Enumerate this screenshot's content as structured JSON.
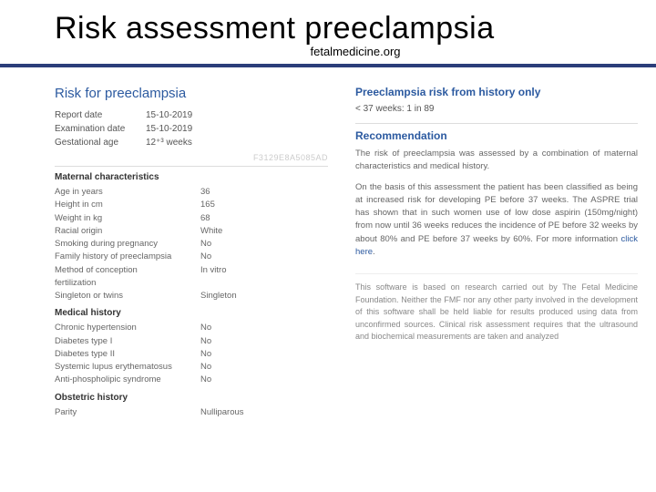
{
  "header": {
    "title": "Risk assessment preeclampsia",
    "subtitle": "fetalmedicine.org"
  },
  "left": {
    "title": "Risk for preeclampsia",
    "meta": [
      {
        "label": "Report date",
        "value": "15-10-2019"
      },
      {
        "label": "Examination date",
        "value": "15-10-2019"
      },
      {
        "label": "Gestational age",
        "value": "12⁺³ weeks"
      }
    ],
    "watermark": "F3129E8A5085AD",
    "maternal": {
      "title": "Maternal characteristics",
      "rows": [
        {
          "label": "Age in years",
          "value": "36"
        },
        {
          "label": "Height in cm",
          "value": "165"
        },
        {
          "label": "Weight in kg",
          "value": "68"
        },
        {
          "label": "Racial origin",
          "value": "White"
        },
        {
          "label": "Smoking during pregnancy",
          "value": "No"
        },
        {
          "label": "Family history of preeclampsia",
          "value": "No"
        },
        {
          "label": "Method of conception",
          "value": "In vitro"
        },
        {
          "label": "fertilization",
          "value": ""
        },
        {
          "label": "Singleton or twins",
          "value": "Singleton"
        }
      ]
    },
    "medical": {
      "title": "Medical history",
      "rows": [
        {
          "label": "Chronic hypertension",
          "value": "No"
        },
        {
          "label": "Diabetes type I",
          "value": "No"
        },
        {
          "label": "Diabetes type II",
          "value": "No"
        },
        {
          "label": "Systemic lupus erythematosus",
          "value": "No"
        },
        {
          "label": "Anti-phospholipic syndrome",
          "value": "No"
        }
      ]
    },
    "obstetric": {
      "title": "Obstetric history",
      "rows": [
        {
          "label": "Parity",
          "value": "Nulliparous"
        }
      ]
    }
  },
  "right": {
    "history": {
      "title": "Preeclampsia risk from history only",
      "value": "< 37 weeks:  1 in 89"
    },
    "rec": {
      "title": "Recommendation",
      "p1": "The risk of preeclampsia was assessed by a combination of maternal characteristics and medical history.",
      "p2": "On the basis of this assessment the patient has been classified as being at increased risk for developing PE before 37 weeks. The ASPRE trial has shown that in such women use of low dose aspirin (150mg/night) from now until 36 weeks reduces the incidence of PE before 32 weeks by about 80% and PE before 37 weeks by 60%. For more information ",
      "link": "click here",
      "p2b": "."
    },
    "disclaimer": "This software is based on research carried out by The Fetal Medicine Foundation. Neither the FMF nor any other party involved in the development of this software shall be held liable for results produced using data from unconfirmed sources. Clinical risk assessment requires that the ultrasound and biochemical measurements are taken and analyzed"
  }
}
